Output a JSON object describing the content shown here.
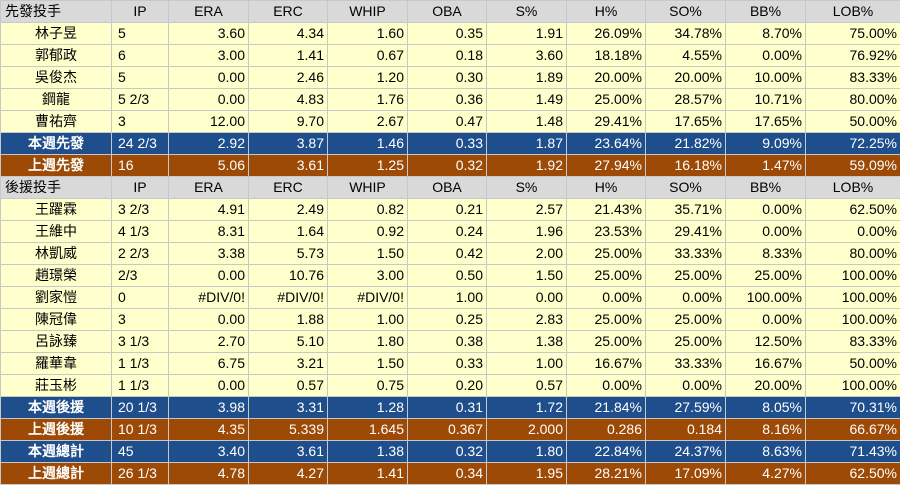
{
  "starter_section": {
    "headers": [
      "先發投手",
      "IP",
      "ERA",
      "ERC",
      "WHIP",
      "OBA",
      "S%",
      "H%",
      "SO%",
      "BB%",
      "LOB%"
    ],
    "rows": [
      [
        "林子昱",
        "5",
        "3.60",
        "4.34",
        "1.60",
        "0.35",
        "1.91",
        "26.09%",
        "34.78%",
        "8.70%",
        "75.00%"
      ],
      [
        "郭郁政",
        "6",
        "3.00",
        "1.41",
        "0.67",
        "0.18",
        "3.60",
        "18.18%",
        "4.55%",
        "0.00%",
        "76.92%"
      ],
      [
        "吳俊杰",
        "5",
        "0.00",
        "2.46",
        "1.20",
        "0.30",
        "1.89",
        "20.00%",
        "20.00%",
        "10.00%",
        "83.33%"
      ],
      [
        "鋼龍",
        "5 2/3",
        "0.00",
        "4.83",
        "1.76",
        "0.36",
        "1.49",
        "25.00%",
        "28.57%",
        "10.71%",
        "80.00%"
      ],
      [
        "曹祐齊",
        "3",
        "12.00",
        "9.70",
        "2.67",
        "0.47",
        "1.48",
        "29.41%",
        "17.65%",
        "17.65%",
        "50.00%"
      ]
    ],
    "this_week": [
      "本週先發",
      "24 2/3",
      "2.92",
      "3.87",
      "1.46",
      "0.33",
      "1.87",
      "23.64%",
      "21.82%",
      "9.09%",
      "72.25%"
    ],
    "last_week": [
      "上週先發",
      "16",
      "5.06",
      "3.61",
      "1.25",
      "0.32",
      "1.92",
      "27.94%",
      "16.18%",
      "1.47%",
      "59.09%"
    ]
  },
  "reliever_section": {
    "headers": [
      "後援投手",
      "IP",
      "ERA",
      "ERC",
      "WHIP",
      "OBA",
      "S%",
      "H%",
      "SO%",
      "BB%",
      "LOB%"
    ],
    "rows": [
      [
        "王躍霖",
        "3 2/3",
        "4.91",
        "2.49",
        "0.82",
        "0.21",
        "2.57",
        "21.43%",
        "35.71%",
        "0.00%",
        "62.50%"
      ],
      [
        "王維中",
        "4 1/3",
        "8.31",
        "1.64",
        "0.92",
        "0.24",
        "1.96",
        "23.53%",
        "29.41%",
        "0.00%",
        "0.00%"
      ],
      [
        "林凱威",
        "2 2/3",
        "3.38",
        "5.73",
        "1.50",
        "0.42",
        "2.00",
        "25.00%",
        "33.33%",
        "8.33%",
        "80.00%"
      ],
      [
        "趙璟榮",
        "2/3",
        "0.00",
        "10.76",
        "3.00",
        "0.50",
        "1.50",
        "25.00%",
        "25.00%",
        "25.00%",
        "100.00%"
      ],
      [
        "劉家愷",
        "0",
        "#DIV/0!",
        "#DIV/0!",
        "#DIV/0!",
        "1.00",
        "0.00",
        "0.00%",
        "0.00%",
        "100.00%",
        "100.00%"
      ],
      [
        "陳冠偉",
        "3",
        "0.00",
        "1.88",
        "1.00",
        "0.25",
        "2.83",
        "25.00%",
        "25.00%",
        "0.00%",
        "100.00%"
      ],
      [
        "呂詠臻",
        "3 1/3",
        "2.70",
        "5.10",
        "1.80",
        "0.38",
        "1.38",
        "25.00%",
        "25.00%",
        "12.50%",
        "83.33%"
      ],
      [
        "羅華韋",
        "1 1/3",
        "6.75",
        "3.21",
        "1.50",
        "0.33",
        "1.00",
        "16.67%",
        "33.33%",
        "16.67%",
        "50.00%"
      ],
      [
        "莊玉彬",
        "1 1/3",
        "0.00",
        "0.57",
        "0.75",
        "0.20",
        "0.57",
        "0.00%",
        "0.00%",
        "20.00%",
        "100.00%"
      ]
    ],
    "this_week": [
      "本週後援",
      "20 1/3",
      "3.98",
      "3.31",
      "1.28",
      "0.31",
      "1.72",
      "21.84%",
      "27.59%",
      "8.05%",
      "70.31%"
    ],
    "last_week": [
      "上週後援",
      "10 1/3",
      "4.35",
      "5.339",
      "1.645",
      "0.367",
      "2.000",
      "0.286",
      "0.184",
      "8.16%",
      "66.67%"
    ]
  },
  "totals": {
    "this_week": [
      "本週總計",
      "45",
      "3.40",
      "3.61",
      "1.38",
      "0.32",
      "1.80",
      "22.84%",
      "24.37%",
      "8.63%",
      "71.43%"
    ],
    "last_week": [
      "上週總計",
      "26 1/3",
      "4.78",
      "4.27",
      "1.41",
      "0.34",
      "1.95",
      "28.21%",
      "17.09%",
      "4.27%",
      "62.50%"
    ]
  },
  "colors": {
    "header_bg": "#d9d9d9",
    "row_bg": "#ffffcc",
    "this_week_bg": "#1f4e8c",
    "last_week_bg": "#9c4a06"
  }
}
